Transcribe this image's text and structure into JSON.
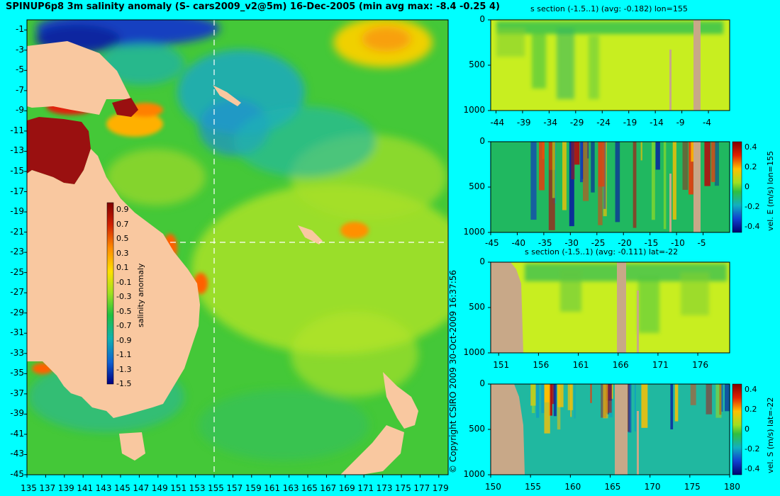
{
  "title": "SPINUP6p8 3m salinity anomaly (S- cars2009_v2@5m) 16-Dec-2005 (min avg max: -8.4 -0.25 4)",
  "copyright": "© Copyright CSIRO 2009   30-Oct-2009 16:37:56",
  "colors": {
    "background": "#00ffff",
    "land": "#f9c8a0",
    "mask": "#c8a888",
    "ocean_mid": "#44c838",
    "ocean_pos": "#c8ee20",
    "ocean_neg": "#18b4c0",
    "hot": "#b01010",
    "cold": "#1030c0"
  },
  "chart_data": [
    {
      "type": "heatmap",
      "name": "map",
      "title": "SPINUP6p8 3m salinity anomaly (S- cars2009_v2@5m) 16-Dec-2005 (min avg max: -8.4 -0.25 4)",
      "xlim": [
        135,
        180
      ],
      "ylim": [
        -45,
        0
      ],
      "x_ticks": [
        "135",
        "137",
        "139",
        "141",
        "143",
        "145",
        "147",
        "149",
        "151",
        "153",
        "155",
        "157",
        "159",
        "161",
        "163",
        "165",
        "167",
        "169",
        "171",
        "173",
        "175",
        "177",
        "179"
      ],
      "y_ticks": [
        "-1",
        "-3",
        "-5",
        "-7",
        "-9",
        "-11",
        "-13",
        "-15",
        "-17",
        "-19",
        "-21",
        "-23",
        "-25",
        "-27",
        "-29",
        "-31",
        "-33",
        "-35",
        "-37",
        "-39",
        "-41",
        "-43",
        "-45"
      ],
      "section_lon": 155,
      "section_lat": -22,
      "colorbar": {
        "label": "salinity anomaly",
        "ticks": [
          "0.9",
          "0.7",
          "0.5",
          "0.3",
          "0.1",
          "-0.1",
          "-0.3",
          "-0.5",
          "-0.7",
          "-0.9",
          "-1.1",
          "-1.3",
          "-1.5"
        ],
        "range": [
          -1.5,
          0.9
        ]
      },
      "min": -8.4,
      "avg": -0.25,
      "max": 4
    },
    {
      "type": "heatmap",
      "name": "s-section-lon",
      "title": "s section (-1.5..1) (avg: -0.182) lon=155",
      "xlim": [
        -45,
        0
      ],
      "ylim": [
        1000,
        0
      ],
      "x_ticks": [
        "-44",
        "-39",
        "-34",
        "-29",
        "-24",
        "-19",
        "-14",
        "-9",
        "-4"
      ],
      "y_ticks": [
        "0",
        "500",
        "1000"
      ]
    },
    {
      "type": "heatmap",
      "name": "vel-e-section",
      "xlim": [
        -45,
        0
      ],
      "ylim": [
        1000,
        0
      ],
      "x_ticks": [
        "-45",
        "-40",
        "-35",
        "-30",
        "-25",
        "-20",
        "-15",
        "-10",
        "-5"
      ],
      "y_ticks": [
        "0",
        "500",
        "1000"
      ],
      "colorbar": {
        "label": "vel. E (m/s) lon=155",
        "ticks": [
          "0.4",
          "0.2",
          "0",
          "-0.2",
          "-0.4"
        ]
      }
    },
    {
      "type": "heatmap",
      "name": "s-section-lat",
      "title": "s section (-1.5..1) (avg: -0.111) lat=-22",
      "xlim": [
        150,
        180
      ],
      "ylim": [
        1000,
        0
      ],
      "x_ticks": [
        "151",
        "156",
        "161",
        "166",
        "171",
        "176"
      ],
      "y_ticks": [
        "0",
        "500",
        "1000"
      ]
    },
    {
      "type": "heatmap",
      "name": "vel-s-section",
      "xlim": [
        150,
        180
      ],
      "ylim": [
        1000,
        0
      ],
      "x_ticks": [
        "150",
        "155",
        "160",
        "165",
        "170",
        "175",
        "180"
      ],
      "y_ticks": [
        "0",
        "500",
        "1000"
      ],
      "colorbar": {
        "label": "vel. S (m/s) lat=-22",
        "ticks": [
          "0.4",
          "0.2",
          "0",
          "-0.2",
          "-0.4"
        ]
      }
    }
  ]
}
